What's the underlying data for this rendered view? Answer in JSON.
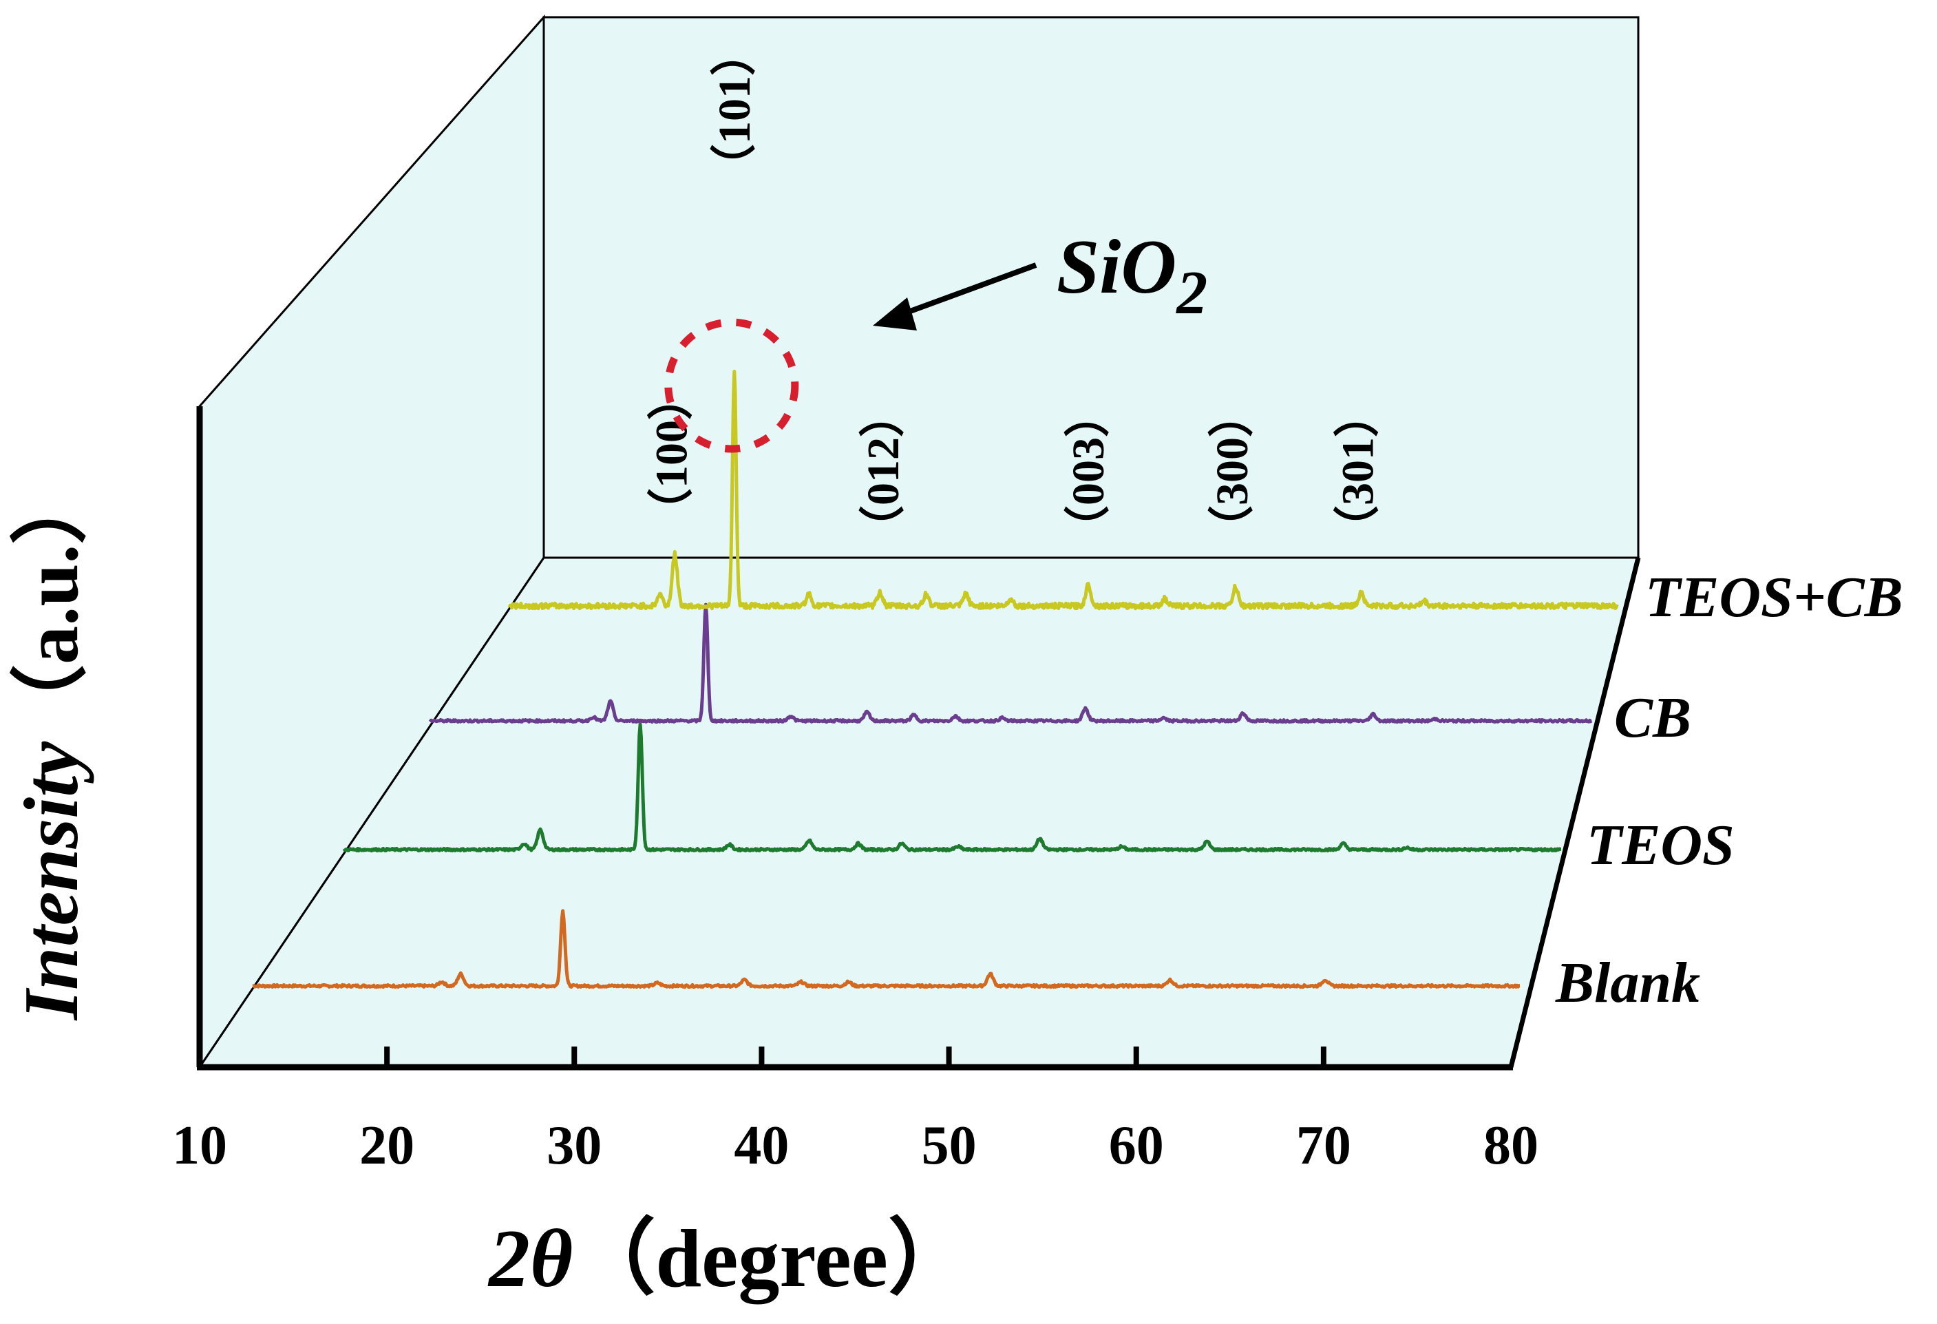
{
  "chart_data": {
    "type": "line",
    "title": "",
    "xlabel": "2θ（degree）",
    "xlabel_prefix": "2",
    "xlabel_symbol": "θ",
    "xlabel_unit": "（degree）",
    "ylabel": "Intensity（a.u.）",
    "ylabel_italic": "Intensity",
    "ylabel_unit": "（a.u.）",
    "xlim": [
      10,
      80
    ],
    "ylim": [
      0,
      100
    ],
    "xticks": [
      10,
      20,
      30,
      40,
      50,
      60,
      70,
      80
    ],
    "series": [
      {
        "name": "Blank",
        "color": "#d2691e",
        "x_start": 13,
        "peaks": [
          {
            "x": 23.0,
            "y": 4
          },
          {
            "x": 24.0,
            "y": 12
          },
          {
            "x": 29.4,
            "y": 75
          },
          {
            "x": 34.4,
            "y": 3
          },
          {
            "x": 39.0,
            "y": 6
          },
          {
            "x": 42.0,
            "y": 4
          },
          {
            "x": 44.5,
            "y": 4
          },
          {
            "x": 52.0,
            "y": 12
          },
          {
            "x": 61.5,
            "y": 6
          },
          {
            "x": 69.7,
            "y": 6
          }
        ]
      },
      {
        "name": "TEOS",
        "color": "#1e7a2e",
        "x_start": 13,
        "peaks": [
          {
            "x": 22.9,
            "y": 6
          },
          {
            "x": 23.8,
            "y": 20
          },
          {
            "x": 29.3,
            "y": 125
          },
          {
            "x": 34.2,
            "y": 5
          },
          {
            "x": 38.6,
            "y": 9
          },
          {
            "x": 41.3,
            "y": 6
          },
          {
            "x": 43.7,
            "y": 6
          },
          {
            "x": 46.8,
            "y": 3
          },
          {
            "x": 51.3,
            "y": 11
          },
          {
            "x": 55.8,
            "y": 3
          },
          {
            "x": 60.5,
            "y": 8
          },
          {
            "x": 68.0,
            "y": 6
          },
          {
            "x": 71.5,
            "y": 2
          }
        ]
      },
      {
        "name": "CB",
        "color": "#6a3d8e",
        "x_start": 13,
        "peaks": [
          {
            "x": 22.4,
            "y": 4
          },
          {
            "x": 23.4,
            "y": 20
          },
          {
            "x": 28.9,
            "y": 120
          },
          {
            "x": 33.8,
            "y": 5
          },
          {
            "x": 38.2,
            "y": 9
          },
          {
            "x": 40.9,
            "y": 6
          },
          {
            "x": 43.3,
            "y": 5
          },
          {
            "x": 46.0,
            "y": 3
          },
          {
            "x": 50.8,
            "y": 13
          },
          {
            "x": 55.3,
            "y": 3
          },
          {
            "x": 59.9,
            "y": 8
          },
          {
            "x": 67.4,
            "y": 7
          },
          {
            "x": 71.0,
            "y": 2
          }
        ]
      },
      {
        "name": "TEOS+CB",
        "color": "#c8c820",
        "x_start": 13,
        "peaks": [
          {
            "x": 22.1,
            "y": 5
          },
          {
            "x": 23.0,
            "y": 22
          },
          {
            "x": 26.6,
            "y": 100
          },
          {
            "x": 31.1,
            "y": 5
          },
          {
            "x": 35.4,
            "y": 6
          },
          {
            "x": 38.2,
            "y": 5
          },
          {
            "x": 40.6,
            "y": 5
          },
          {
            "x": 43.3,
            "y": 3
          },
          {
            "x": 48.0,
            "y": 9
          },
          {
            "x": 52.6,
            "y": 3
          },
          {
            "x": 56.9,
            "y": 8
          },
          {
            "x": 64.5,
            "y": 6
          },
          {
            "x": 68.3,
            "y": 2
          }
        ]
      }
    ],
    "peak_labels": [
      {
        "x": 22.8,
        "text": "（100）"
      },
      {
        "x": 26.6,
        "text": "（101）"
      },
      {
        "x": 35.6,
        "text": "（012）"
      },
      {
        "x": 48.0,
        "text": "（003）"
      },
      {
        "x": 56.7,
        "text": "（300）"
      },
      {
        "x": 64.3,
        "text": "（301）"
      }
    ],
    "annotations": [
      {
        "text_main": "SiO",
        "text_sub": "2",
        "target_x": 26.6,
        "marker": "red dashed circle"
      }
    ]
  }
}
